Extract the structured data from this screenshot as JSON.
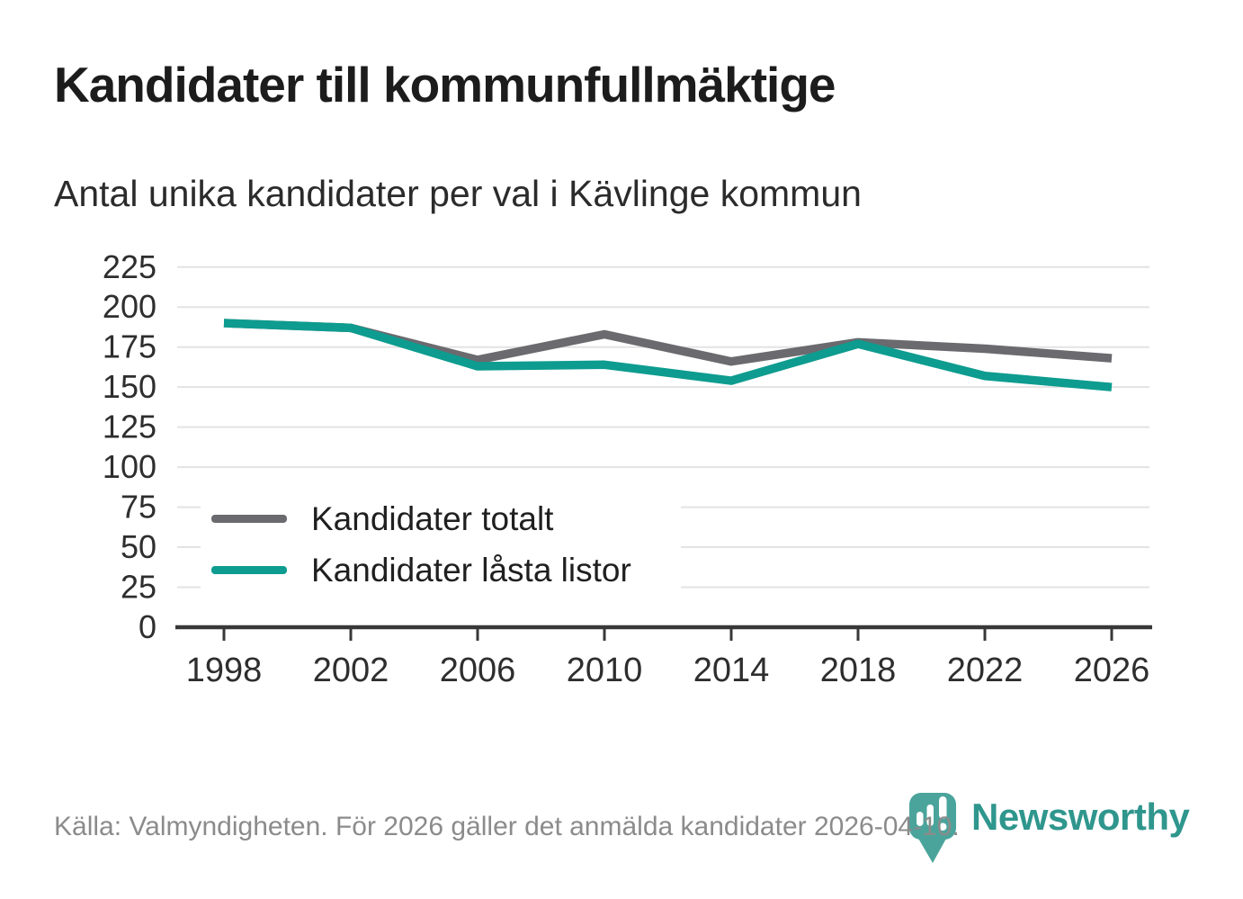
{
  "header": {
    "title": "Kandidater till kommunfullmäktige",
    "subtitle": "Antal unika kandidater per val i Kävlinge kommun"
  },
  "footer": {
    "source": "Källa: Valmyndigheten. För 2026 gäller det anmälda kandidater 2026-04-10."
  },
  "brand": {
    "name": "Newsworthy"
  },
  "colors": {
    "total_line": "#6a6a6f",
    "locked_line": "#0d9c8f",
    "grid": "#e3e3e3",
    "axis": "#383838",
    "axis_label": "#2e2e2e",
    "title_text": "#1c1c1c",
    "footer_text": "#8b8b8b",
    "brand_teal": "#2f968d",
    "logo_pin_teal": "#4aa49b"
  },
  "chart_data": {
    "type": "line",
    "title": "Kandidater till kommunfullmäktige",
    "subtitle": "Antal unika kandidater per val i Kävlinge kommun",
    "categories": [
      "1998",
      "2002",
      "2006",
      "2010",
      "2014",
      "2018",
      "2022",
      "2026"
    ],
    "series": [
      {
        "name": "Kandidater totalt",
        "color": "#6a6a6f",
        "values": [
          190,
          187,
          167,
          183,
          166,
          178,
          174,
          168
        ]
      },
      {
        "name": "Kandidater låsta listor",
        "color": "#0d9c8f",
        "values": [
          190,
          187,
          163,
          164,
          154,
          177,
          157,
          150
        ]
      }
    ],
    "ylim": [
      0,
      225
    ],
    "yticks": [
      0,
      25,
      50,
      75,
      100,
      125,
      150,
      175,
      200,
      225
    ],
    "grid": "horizontal",
    "legend_position": "inside-left",
    "source": "Källa: Valmyndigheten. För 2026 gäller det anmälda kandidater 2026-04-10."
  }
}
